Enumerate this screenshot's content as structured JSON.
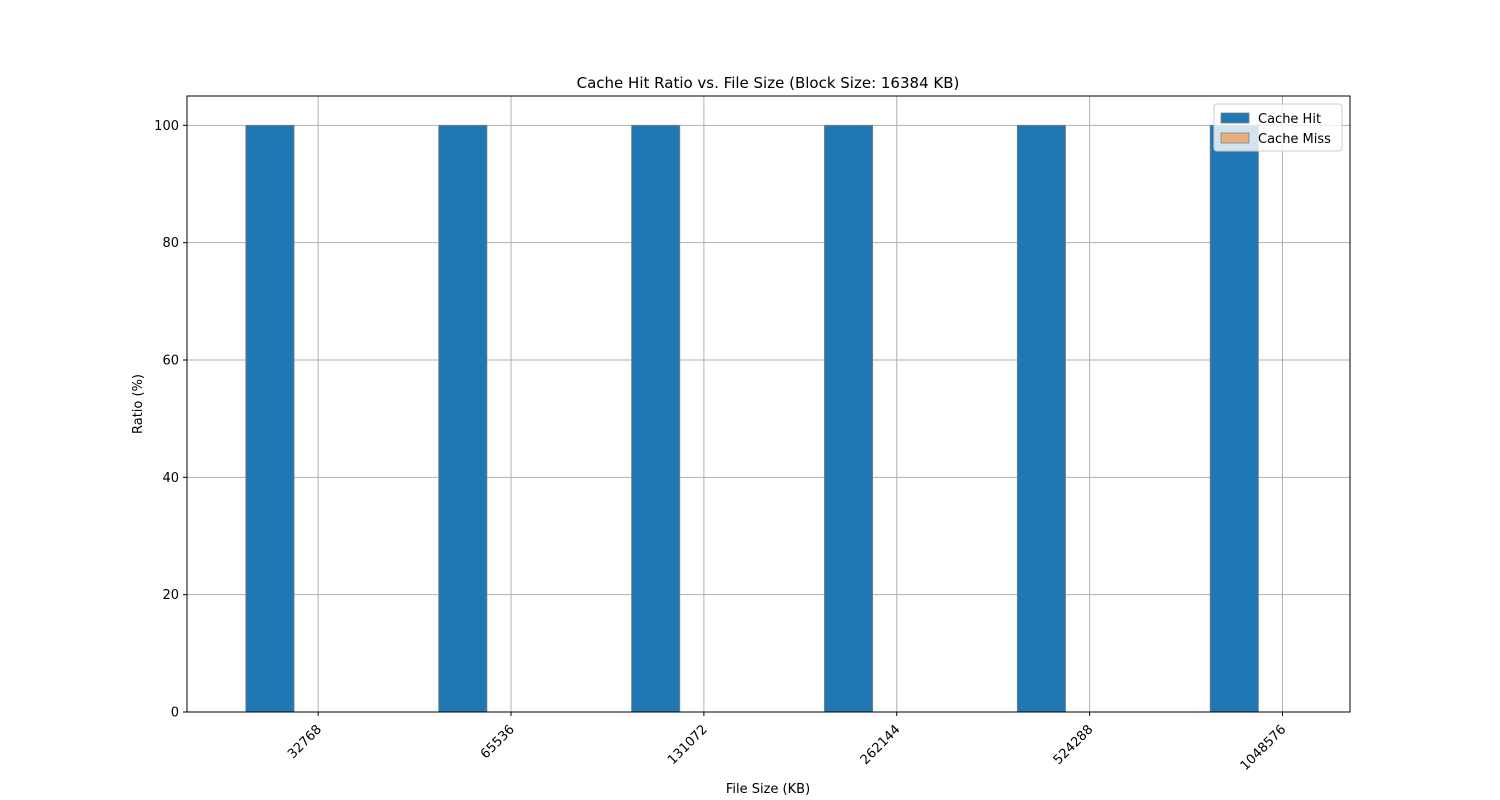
{
  "chart_data": {
    "type": "bar",
    "title": "Cache Hit Ratio vs. File Size (Block Size: 16384 KB)",
    "xlabel": "File Size (KB)",
    "ylabel": "Ratio (%)",
    "categories": [
      "32768",
      "65536",
      "131072",
      "262144",
      "524288",
      "1048576"
    ],
    "series": [
      {
        "name": "Cache Hit",
        "values": [
          100,
          100,
          100,
          100,
          100,
          100
        ],
        "color": "#1f77b4"
      },
      {
        "name": "Cache Miss",
        "values": [
          0,
          0,
          0,
          0,
          0,
          0
        ],
        "color": "#e8b07e"
      }
    ],
    "ylim": [
      0,
      105
    ],
    "yticks": [
      0,
      20,
      40,
      60,
      80,
      100
    ],
    "grid": true,
    "legend": "top-right"
  }
}
